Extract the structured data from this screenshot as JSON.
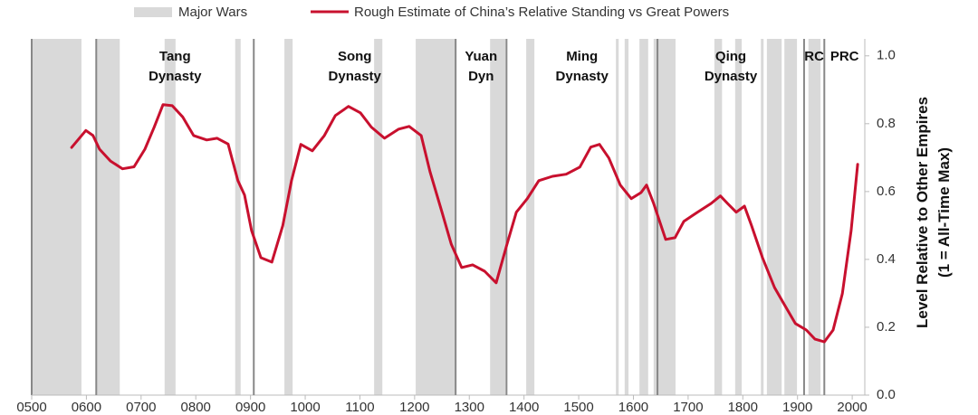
{
  "chart_data": {
    "type": "line",
    "xlim": [
      500,
      2023
    ],
    "ylim": [
      0,
      1.05
    ],
    "xticks": [
      {
        "value": 500,
        "label": "0500"
      },
      {
        "value": 600,
        "label": "0600"
      },
      {
        "value": 700,
        "label": "0700"
      },
      {
        "value": 800,
        "label": "0800"
      },
      {
        "value": 900,
        "label": "0900"
      },
      1000,
      1100,
      1200,
      1300,
      1400,
      1500,
      1600,
      1700,
      1800,
      1900,
      2000
    ],
    "yticks": [
      {
        "value": 0,
        "label": "0.0"
      },
      0.2,
      0.4,
      0.6,
      0.8,
      {
        "value": 1,
        "label": "1.0"
      }
    ],
    "y_label": [
      "Level Relative to Other Empires",
      "(1 = All-Time Max)"
    ],
    "wars": {
      "name": "Major Wars",
      "color": "#d9d9d9",
      "ranges": [
        [
          500,
          591
        ],
        [
          619,
          661
        ],
        [
          743,
          763
        ],
        [
          872,
          882
        ],
        [
          962,
          977
        ],
        [
          1126,
          1141
        ],
        [
          1202,
          1275
        ],
        [
          1338,
          1366
        ],
        [
          1404,
          1419
        ],
        [
          1568,
          1573
        ],
        [
          1584,
          1591
        ],
        [
          1611,
          1627
        ],
        [
          1637,
          1677
        ],
        [
          1748,
          1762
        ],
        [
          1786,
          1798
        ],
        [
          1833,
          1838
        ],
        [
          1844,
          1871
        ],
        [
          1876,
          1899
        ],
        [
          1920,
          1942
        ]
      ]
    },
    "dynasties": [
      {
        "lines": [
          "Tang",
          "Dynasty"
        ],
        "start": 618
      },
      {
        "lines": [
          "Song",
          "Dynasty"
        ],
        "start": 906
      },
      {
        "lines": [
          "Yuan",
          "Dyn"
        ],
        "start": 1275
      },
      {
        "lines": [
          "Ming",
          "Dynasty"
        ],
        "start": 1368
      },
      {
        "lines": [
          "Qing",
          "Dynasty"
        ],
        "start": 1644
      },
      {
        "lines": [
          "RC"
        ],
        "start": 1912
      },
      {
        "lines": [
          "PRC"
        ],
        "start": 1949
      }
    ],
    "series": [
      {
        "name": "Rough Estimate of China’s Relative Standing vs Great Powers",
        "color": "#c8102e",
        "x": [
          573,
          599,
          612,
          624,
          644,
          666,
          687,
          707,
          724,
          740,
          757,
          776,
          796,
          820,
          839,
          859,
          877,
          889,
          902,
          919,
          939,
          959,
          975,
          992,
          1013,
          1035,
          1055,
          1079,
          1101,
          1121,
          1145,
          1171,
          1190,
          1212,
          1228,
          1250,
          1267,
          1286,
          1306,
          1328,
          1349,
          1369,
          1386,
          1406,
          1427,
          1452,
          1477,
          1502,
          1522,
          1538,
          1555,
          1576,
          1596,
          1614,
          1624,
          1637,
          1659,
          1676,
          1692,
          1717,
          1742,
          1759,
          1772,
          1788,
          1803,
          1816,
          1836,
          1858,
          1874,
          1896,
          1916,
          1932,
          1949,
          1965,
          1982,
          1998,
          2010
        ],
        "values": [
          0.73,
          0.78,
          0.765,
          0.725,
          0.69,
          0.667,
          0.673,
          0.725,
          0.79,
          0.856,
          0.853,
          0.82,
          0.765,
          0.752,
          0.757,
          0.74,
          0.632,
          0.59,
          0.485,
          0.405,
          0.392,
          0.5,
          0.632,
          0.739,
          0.72,
          0.765,
          0.824,
          0.851,
          0.832,
          0.79,
          0.757,
          0.784,
          0.792,
          0.765,
          0.659,
          0.539,
          0.445,
          0.376,
          0.384,
          0.365,
          0.331,
          0.445,
          0.539,
          0.579,
          0.632,
          0.645,
          0.651,
          0.672,
          0.731,
          0.739,
          0.699,
          0.619,
          0.579,
          0.597,
          0.619,
          0.565,
          0.459,
          0.464,
          0.512,
          0.539,
          0.565,
          0.587,
          0.565,
          0.539,
          0.557,
          0.499,
          0.405,
          0.317,
          0.272,
          0.211,
          0.192,
          0.165,
          0.157,
          0.192,
          0.299,
          0.485,
          0.68
        ]
      }
    ]
  }
}
